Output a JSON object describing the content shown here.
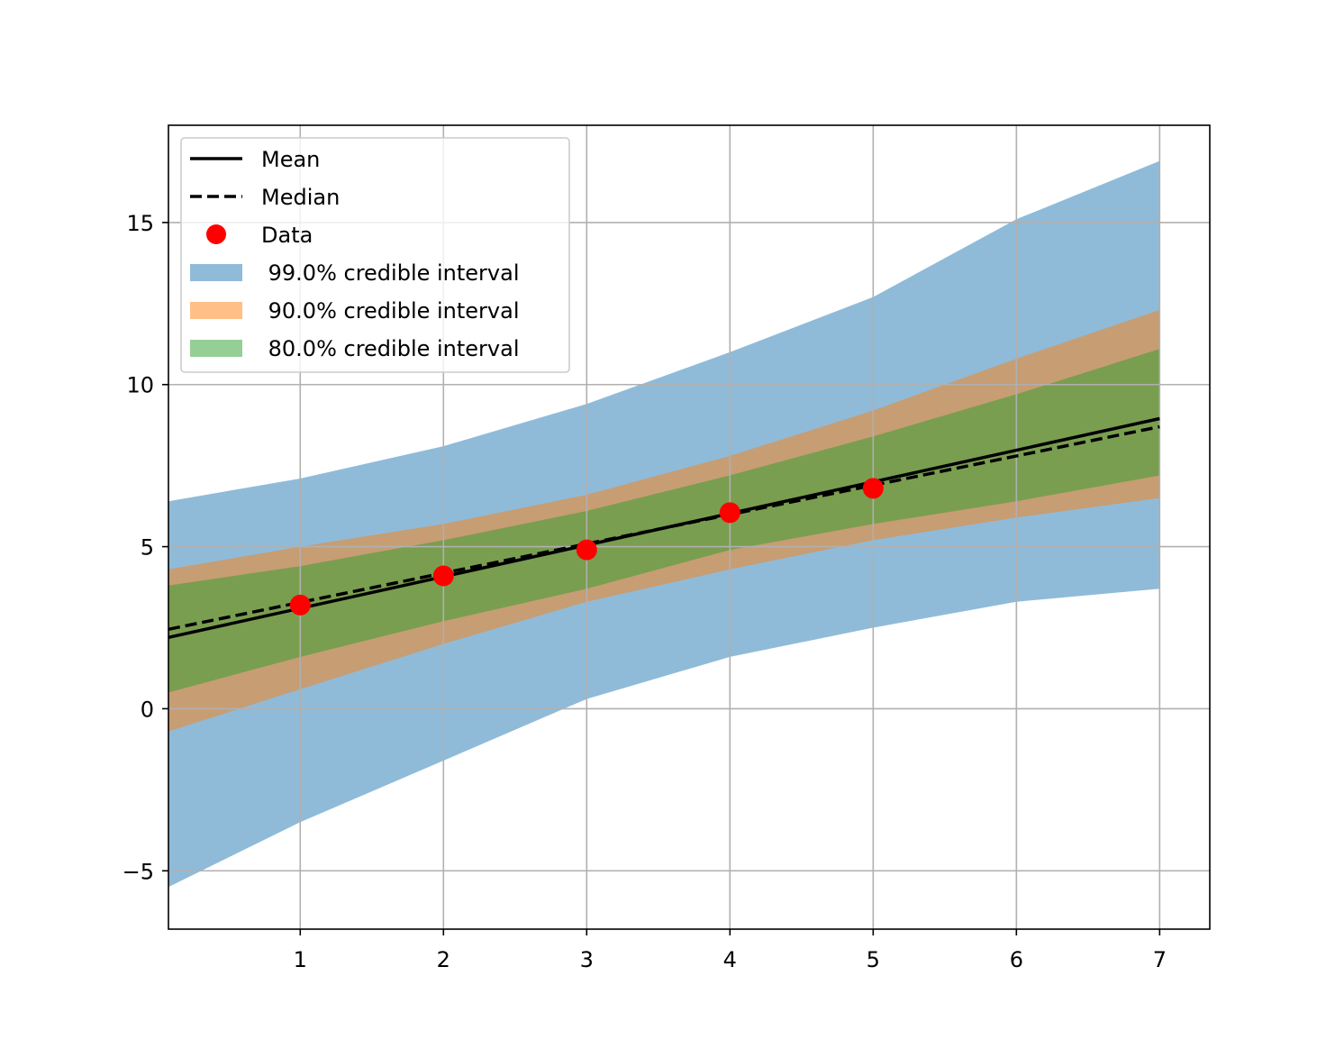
{
  "chart_data": {
    "type": "area",
    "xlim": [
      0.08,
      7.35
    ],
    "ylim": [
      -6.8,
      18.0
    ],
    "grid": true,
    "legend_position": "top-left",
    "x_ticks": [
      1,
      2,
      3,
      4,
      5,
      6,
      7
    ],
    "y_ticks": [
      -5,
      0,
      5,
      10,
      15
    ],
    "x_tick_labels": [
      "1",
      "2",
      "3",
      "4",
      "5",
      "6",
      "7"
    ],
    "y_tick_labels": [
      "−5",
      "0",
      "5",
      "10",
      "15"
    ],
    "colors": {
      "ci99": "#1f77b4",
      "ci90": "#ff7f0e",
      "ci80": "#2ca02c",
      "line": "#000000",
      "data": "#ff0000",
      "grid": "#b0b0b0"
    },
    "legend": {
      "mean": "Mean",
      "median": "Median",
      "data": "Data",
      "ci99": " 99.0% credible interval",
      "ci90": " 90.0% credible interval",
      "ci80": " 80.0% credible interval"
    },
    "bands": {
      "x": [
        0.08,
        1,
        2,
        3,
        4,
        5,
        6,
        7
      ],
      "ci99": {
        "lower": [
          -5.5,
          -3.5,
          -1.6,
          0.3,
          1.6,
          2.5,
          3.3,
          3.7
        ],
        "upper": [
          6.4,
          7.1,
          8.1,
          9.4,
          11.0,
          12.7,
          15.1,
          16.9
        ]
      },
      "ci90": {
        "lower": [
          -0.7,
          0.6,
          2.0,
          3.3,
          4.3,
          5.2,
          5.9,
          6.5
        ],
        "upper": [
          4.3,
          5.0,
          5.7,
          6.6,
          7.8,
          9.2,
          10.8,
          12.3
        ]
      },
      "ci80": {
        "lower": [
          0.5,
          1.6,
          2.7,
          3.7,
          4.9,
          5.7,
          6.4,
          7.2
        ],
        "upper": [
          3.8,
          4.4,
          5.2,
          6.1,
          7.2,
          8.4,
          9.7,
          11.1
        ]
      }
    },
    "series": [
      {
        "name": "Mean",
        "style": "solid",
        "x": [
          0.08,
          7.0
        ],
        "y": [
          2.2,
          8.95
        ]
      },
      {
        "name": "Median",
        "style": "dashed",
        "x": [
          0.08,
          7.0
        ],
        "y": [
          2.45,
          8.7
        ]
      },
      {
        "name": "Data",
        "style": "markers",
        "x": [
          1,
          2,
          3,
          4,
          5
        ],
        "y": [
          3.2,
          4.1,
          4.9,
          6.05,
          6.8
        ]
      }
    ]
  }
}
